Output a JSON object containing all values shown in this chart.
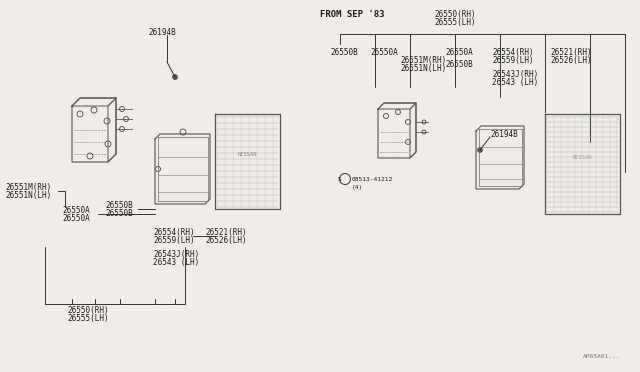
{
  "bg_color": "#f0ede8",
  "from_sep83_label": "FROM SEP '83",
  "diagram_ref": "AP65A01...",
  "text_color": "#1a1a1a",
  "line_color": "#333333",
  "font_size_label": 5.5,
  "font_size_header": 6.5,
  "font_size_small": 4.5,
  "left_parts": {
    "label_26194B": "26194B",
    "label_26551M": "26551M(RH)",
    "label_26551N": "26551N(LH)",
    "label_26550A_1": "26550A",
    "label_26550A_2": "26550A",
    "label_26550B_1": "26550B",
    "label_26550B_2": "26550B",
    "label_26554": "26554(RH)",
    "label_26559": "26559(LH)",
    "label_26543J": "26543J(RH)",
    "label_26543": "26543 (LH)",
    "label_26521": "26521(RH)",
    "label_26526": "26526(LH)",
    "label_26550_bot": "26550(RH)",
    "label_26555_bot": "26555(LH)"
  },
  "right_parts": {
    "header_rh": "26550(RH)",
    "header_lh": "26555(LH)",
    "col1": "26550B",
    "col2a": "26550A",
    "col2b_rh": "26551M(RH)",
    "col2b_lh": "26551N(LH)",
    "col3a": "26550A",
    "col3b": "26550B",
    "col4a_rh": "26554(RH)",
    "col4a_lh": "26559(LH)",
    "col4b_rh": "26543J(RH)",
    "col4b_lh": "26543 (LH)",
    "col5_rh": "26521(RH)",
    "col5_lh": "26526(LH)",
    "bolt": "08513-41212",
    "bolt_qty": "(4)",
    "label_26194B": "26194B"
  }
}
